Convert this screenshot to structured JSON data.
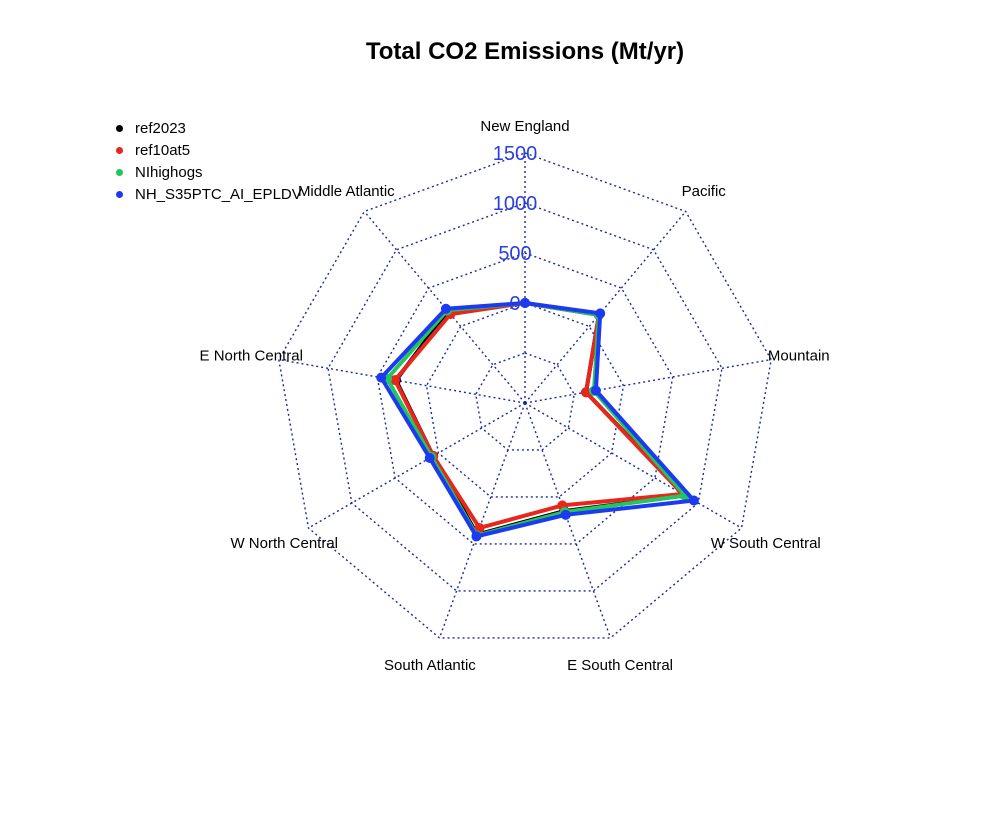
{
  "chart_data": {
    "type": "radar",
    "title": "Total CO2 Emissions (Mt/yr)",
    "axes": [
      "New England",
      "Pacific",
      "Mountain",
      "W South Central",
      "E South Central",
      "South Atlantic",
      "W North Central",
      "E North Central",
      "Middle Atlantic"
    ],
    "ticks": [
      "0",
      "500",
      "1000",
      "1500"
    ],
    "range": [
      -1000,
      1500
    ],
    "grid_levels": [
      -1000,
      -500,
      0,
      500,
      1000,
      1500
    ],
    "legend_position": "top-left",
    "series": [
      {
        "name": "ref2023",
        "color": "#000000",
        "values": [
          0,
          150,
          -380,
          850,
          150,
          400,
          60,
          310,
          200
        ]
      },
      {
        "name": "ref10at5",
        "color": "#e8261c",
        "values": [
          0,
          150,
          -380,
          820,
          90,
          330,
          60,
          320,
          160
        ]
      },
      {
        "name": "NIhighogs",
        "color": "#22c55e",
        "values": [
          0,
          150,
          -300,
          850,
          160,
          410,
          80,
          400,
          210
        ]
      },
      {
        "name": "NH_S35PTC_AI_EPLDV",
        "color": "#1c3af0",
        "values": [
          0,
          170,
          -280,
          950,
          190,
          420,
          100,
          460,
          230
        ]
      }
    ]
  }
}
